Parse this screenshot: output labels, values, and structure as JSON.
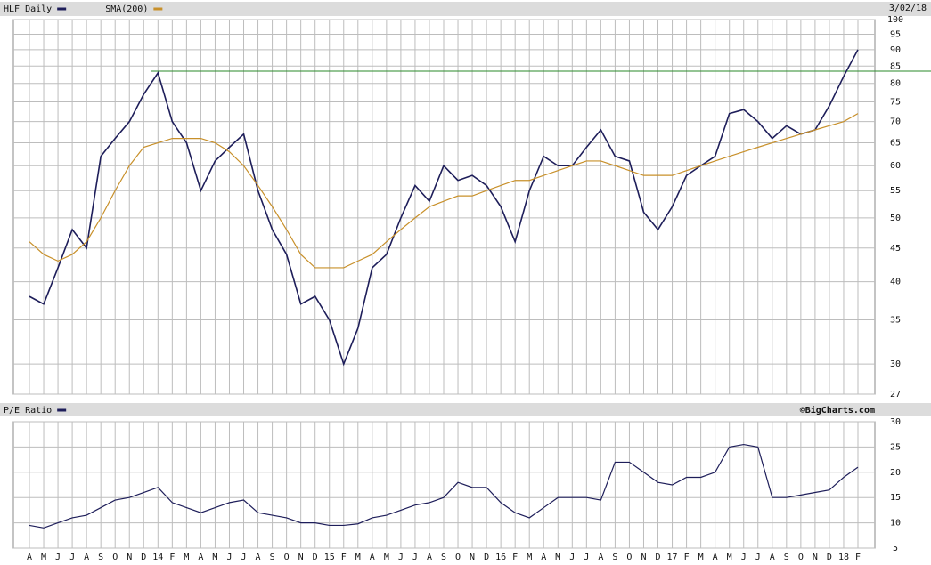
{
  "chart_data": [
    {
      "type": "line",
      "date": "3/02/18",
      "log_scale": true,
      "grid": true,
      "ylim": [
        27,
        100
      ],
      "yticks": [
        27,
        30,
        35,
        40,
        45,
        50,
        55,
        60,
        65,
        70,
        75,
        80,
        85,
        90,
        95,
        100
      ],
      "reference_line": {
        "value": 83.5,
        "color": "#2a8a2a"
      },
      "series": [
        {
          "name": "HLF Daily",
          "color": "#1e1e5a",
          "values": [
            38,
            37,
            42,
            48,
            45,
            62,
            66,
            70,
            77,
            83,
            70,
            65,
            55,
            61,
            64,
            67,
            55,
            48,
            44,
            37,
            38,
            35,
            30,
            34,
            42,
            44,
            50,
            56,
            53,
            60,
            57,
            58,
            56,
            52,
            46,
            55,
            62,
            60,
            60,
            64,
            68,
            62,
            61,
            51,
            48,
            52,
            58,
            60,
            62,
            72,
            73,
            70,
            66,
            69,
            67,
            68,
            74,
            82,
            90
          ]
        },
        {
          "name": "SMA(200)",
          "color": "#c8902a",
          "values": [
            46,
            44,
            43,
            44,
            46,
            50,
            55,
            60,
            64,
            65,
            66,
            66,
            66,
            65,
            63,
            60,
            56,
            52,
            48,
            44,
            42,
            42,
            42,
            43,
            44,
            46,
            48,
            50,
            52,
            53,
            54,
            54,
            55,
            56,
            57,
            57,
            58,
            59,
            60,
            61,
            61,
            60,
            59,
            58,
            58,
            58,
            59,
            60,
            61,
            62,
            63,
            64,
            65,
            66,
            67,
            68,
            69,
            70,
            72
          ]
        }
      ]
    },
    {
      "type": "line",
      "source": "©BigCharts.com",
      "grid": true,
      "ylim": [
        5,
        30
      ],
      "yticks": [
        5,
        10,
        15,
        20,
        25,
        30
      ],
      "categories": [
        "A",
        "M",
        "J",
        "J",
        "A",
        "S",
        "O",
        "N",
        "D",
        "14",
        "F",
        "M",
        "A",
        "M",
        "J",
        "J",
        "A",
        "S",
        "O",
        "N",
        "D",
        "15",
        "F",
        "M",
        "A",
        "M",
        "J",
        "J",
        "A",
        "S",
        "O",
        "N",
        "D",
        "16",
        "F",
        "M",
        "A",
        "M",
        "J",
        "J",
        "A",
        "S",
        "O",
        "N",
        "D",
        "17",
        "F",
        "M",
        "A",
        "M",
        "J",
        "J",
        "A",
        "S",
        "O",
        "N",
        "D",
        "18",
        "F"
      ],
      "series": [
        {
          "name": "P/E Ratio",
          "color": "#1e1e5a",
          "values": [
            9.5,
            9,
            10,
            11,
            11.5,
            13,
            14.5,
            15,
            16,
            17,
            14,
            13,
            12,
            13,
            14,
            14.5,
            12,
            11.5,
            11,
            10,
            10,
            9.5,
            9.5,
            9.8,
            11,
            11.5,
            12.5,
            13.5,
            14,
            15,
            18,
            17,
            17,
            14,
            12,
            11,
            13,
            15,
            15,
            15,
            14.5,
            22,
            22,
            20,
            18,
            17.5,
            19,
            19,
            20,
            25,
            25.5,
            25,
            15,
            15,
            15.5,
            16,
            16.5,
            19,
            21
          ]
        }
      ]
    }
  ]
}
